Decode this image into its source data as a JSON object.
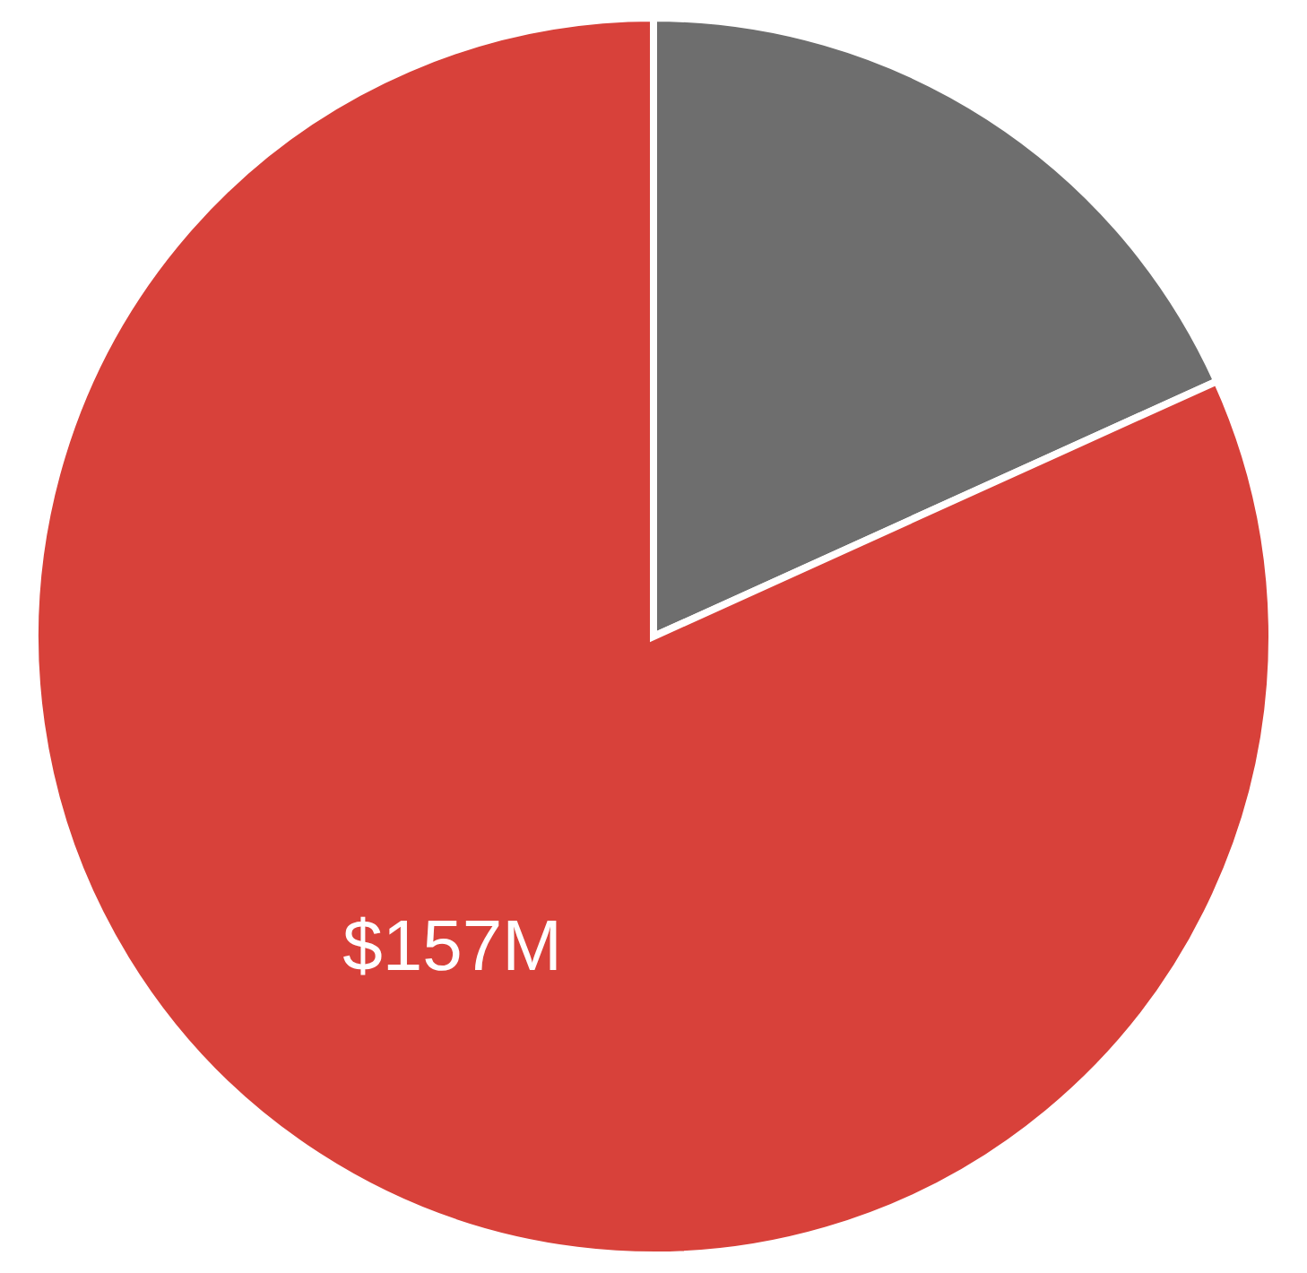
{
  "chart_data": {
    "type": "pie",
    "categories": [
      null,
      null
    ],
    "values": [
      35,
      157
    ],
    "value_labels": [
      null,
      "$157M"
    ],
    "colors": [
      "#6e6e6e",
      "#d8413a"
    ]
  }
}
